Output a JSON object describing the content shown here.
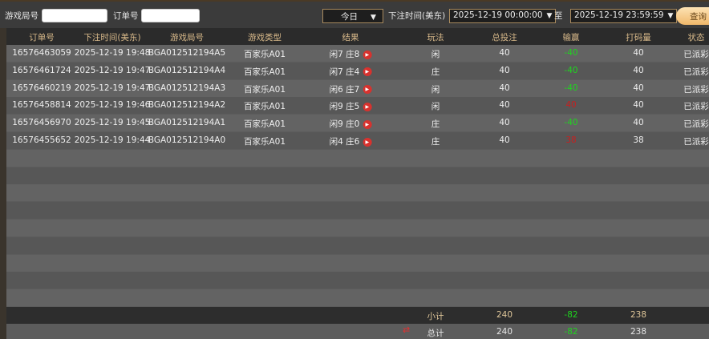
{
  "filters": {
    "game_round_label": "游戏局号",
    "game_round_value": "",
    "order_label": "订单号",
    "order_value": "",
    "period": "今日",
    "bet_time_label": "下注时间(美东)",
    "start": "2025-12-19 00:00:00",
    "to_label": "至",
    "end": "2025-12-19 23:59:59",
    "query": "查询"
  },
  "columns": [
    "订单号",
    "下注时间(美东)",
    "游戏局号",
    "游戏类型",
    "结果",
    "玩法",
    "总投注",
    "输赢",
    "打码量",
    "状态"
  ],
  "rows": [
    [
      "16576463059",
      "2025-12-19 19:48",
      "BGA012512194A5",
      "百家乐A01",
      "闲7 庄8",
      "闲",
      "40",
      "-40",
      "40",
      "已派彩"
    ],
    [
      "16576461724",
      "2025-12-19 19:47",
      "BGA012512194A4",
      "百家乐A01",
      "闲7 庄4",
      "庄",
      "40",
      "-40",
      "40",
      "已派彩"
    ],
    [
      "16576460219",
      "2025-12-19 19:47",
      "BGA012512194A3",
      "百家乐A01",
      "闲6 庄7",
      "闲",
      "40",
      "-40",
      "40",
      "已派彩"
    ],
    [
      "16576458814",
      "2025-12-19 19:46",
      "BGA012512194A2",
      "百家乐A01",
      "闲9 庄5",
      "闲",
      "40",
      "40",
      "40",
      "已派彩"
    ],
    [
      "16576456970",
      "2025-12-19 19:45",
      "BGA012512194A1",
      "百家乐A01",
      "闲9 庄0",
      "庄",
      "40",
      "-40",
      "40",
      "已派彩"
    ],
    [
      "16576455652",
      "2025-12-19 19:44",
      "BGA012512194A0",
      "百家乐A01",
      "闲4 庄6",
      "庄",
      "40",
      "38",
      "38",
      "已派彩"
    ]
  ],
  "subtotal": {
    "label": "小计",
    "bet": "240",
    "win": "-82",
    "code": "238"
  },
  "total": {
    "label": "总计",
    "bet": "240",
    "win": "-82",
    "code": "238"
  },
  "colors": {
    "loss": "#1fd51f",
    "win": "#c62020",
    "accent": "#f0b86a"
  }
}
